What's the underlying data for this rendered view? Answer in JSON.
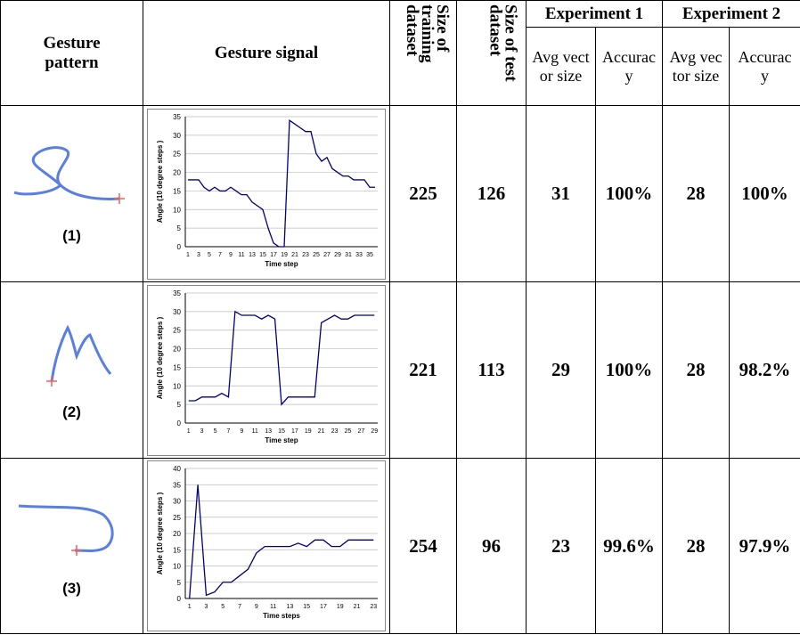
{
  "table": {
    "headers": {
      "pattern": "Gesture pattern",
      "signal": "Gesture signal",
      "training": "Size of training dataset",
      "test": "Size of test dataset",
      "exp1": "Experiment 1",
      "exp2": "Experiment 2",
      "avg": "Avg vector size",
      "acc": "Accuracy"
    },
    "rows": [
      {
        "label": "(1)",
        "training": "225",
        "test": "126",
        "exp1_avg": "31",
        "exp1_acc": "100%",
        "exp2_avg": "28",
        "exp2_acc": "100%",
        "chart": {
          "type": "line",
          "y_label": "Angle (10 degree steps )",
          "x_label": "Time step",
          "color": "#000080",
          "ylim": [
            0,
            35
          ],
          "yticks": [
            0,
            5,
            10,
            15,
            20,
            25,
            30,
            35
          ],
          "grid": true,
          "categories": [
            "1",
            null,
            "3",
            null,
            "5",
            null,
            "7",
            null,
            "9",
            null,
            "11",
            null,
            "13",
            null,
            "15",
            null,
            "17",
            null,
            "19",
            null,
            "21",
            null,
            "23",
            null,
            "25",
            null,
            "27",
            null,
            "29",
            null,
            "31",
            null,
            "33",
            null,
            "35",
            null
          ],
          "values": [
            18,
            18,
            18,
            16,
            15,
            16,
            15,
            15,
            16,
            15,
            14,
            14,
            12,
            11,
            10,
            5,
            1,
            0,
            0,
            34,
            33,
            32,
            31,
            31,
            25,
            23,
            24,
            21,
            20,
            19,
            19,
            18,
            18,
            18,
            16,
            16
          ]
        }
      },
      {
        "label": "(2)",
        "training": "221",
        "test": "113",
        "exp1_avg": "29",
        "exp1_acc": "100%",
        "exp2_avg": "28",
        "exp2_acc": "98.2%",
        "chart": {
          "type": "line",
          "y_label": "Angle (10 degree steps )",
          "x_label": "Time step",
          "color": "#000080",
          "ylim": [
            0,
            35
          ],
          "yticks": [
            0,
            5,
            10,
            15,
            20,
            25,
            30,
            35
          ],
          "grid": true,
          "categories": [
            "1",
            null,
            "3",
            null,
            "5",
            null,
            "7",
            null,
            "9",
            null,
            "11",
            null,
            "13",
            null,
            "15",
            null,
            "17",
            null,
            "19",
            null,
            "21",
            null,
            "23",
            null,
            "25",
            null,
            "27",
            null,
            "29"
          ],
          "values": [
            6,
            6,
            7,
            7,
            7,
            8,
            7,
            30,
            29,
            29,
            29,
            28,
            29,
            28,
            5,
            7,
            7,
            7,
            7,
            7,
            27,
            28,
            29,
            28,
            28,
            29,
            29,
            29,
            29
          ]
        }
      },
      {
        "label": "(3)",
        "training": "254",
        "test": "96",
        "exp1_avg": "23",
        "exp1_acc": "99.6%",
        "exp2_avg": "28",
        "exp2_acc": "97.9%",
        "chart": {
          "type": "line",
          "y_label": "Angle (10 degree steps )",
          "x_label": "Time steps",
          "color": "#000080",
          "ylim": [
            0,
            40
          ],
          "yticks": [
            0,
            5,
            10,
            15,
            20,
            25,
            30,
            35,
            40
          ],
          "grid": true,
          "categories": [
            "1",
            null,
            "3",
            null,
            "5",
            null,
            "7",
            null,
            "9",
            null,
            "11",
            null,
            "13",
            null,
            "15",
            null,
            "17",
            null,
            "19",
            null,
            "21",
            null,
            "23"
          ],
          "values": [
            0,
            35,
            1,
            2,
            5,
            5,
            7,
            9,
            14,
            16,
            16,
            16,
            16,
            17,
            16,
            18,
            18,
            16,
            16,
            18,
            18,
            18,
            18
          ]
        }
      }
    ]
  }
}
